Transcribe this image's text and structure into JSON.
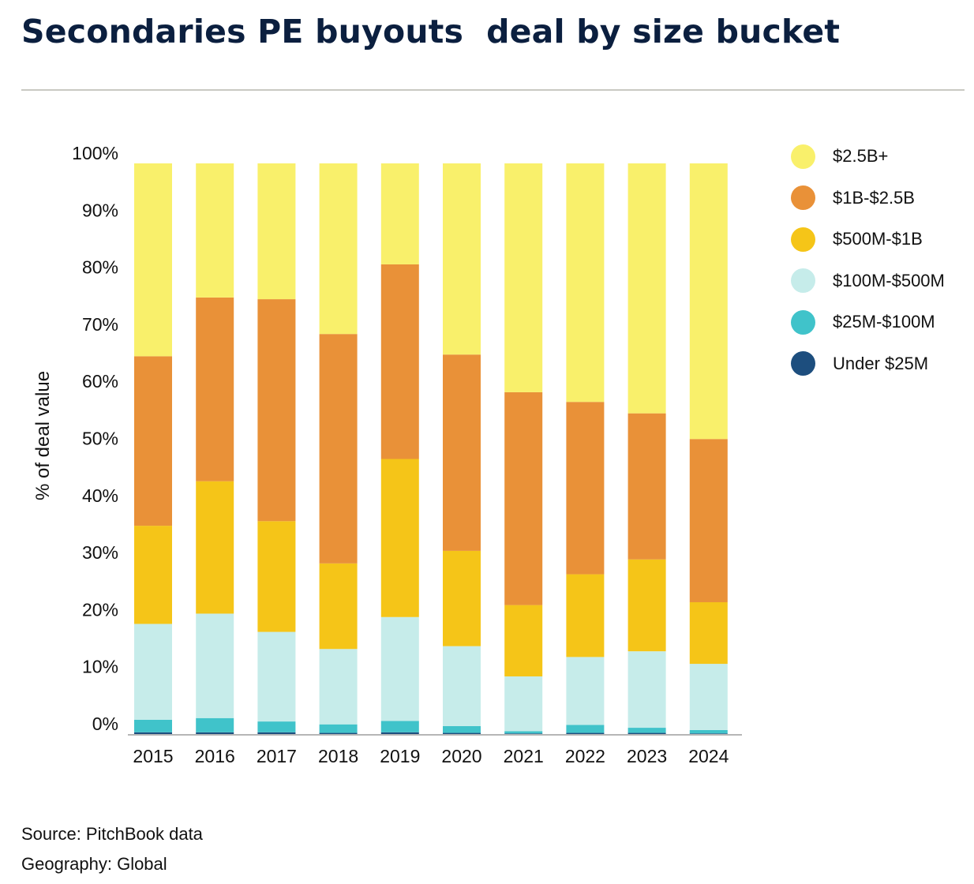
{
  "title": "Secondaries PE buyouts  deal by size bucket",
  "legend": [
    {
      "label": "$2.5B+",
      "color": "#f9f06b"
    },
    {
      "label": "$1B-$2.5B",
      "color": "#e99138"
    },
    {
      "label": "$500M-$1B",
      "color": "#f5c518"
    },
    {
      "label": "$100M-$500M",
      "color": "#c6ecea"
    },
    {
      "label": "$25M-$100M",
      "color": "#40c3ca"
    },
    {
      "label": "Under $25M",
      "color": "#1d4e7e"
    }
  ],
  "footer": {
    "source": "Source: PitchBook data",
    "geography": "Geography: Global"
  },
  "chart_data": {
    "type": "bar",
    "stacked": true,
    "categories": [
      "2015",
      "2016",
      "2017",
      "2018",
      "2019",
      "2020",
      "2021",
      "2022",
      "2023",
      "2024"
    ],
    "ylabel": "% of deal value",
    "ylim": [
      0,
      100
    ],
    "yticks": [
      0,
      10,
      20,
      30,
      40,
      50,
      60,
      70,
      80,
      90,
      100
    ],
    "ytick_labels": [
      "0%",
      "10%",
      "20%",
      "30%",
      "40%",
      "50%",
      "60%",
      "70%",
      "80%",
      "90%",
      "100%"
    ],
    "grid": false,
    "legend_position": "right",
    "series": [
      {
        "name": "Under $25M",
        "color": "#1d4e7e",
        "values": [
          0.3,
          0.3,
          0.3,
          0.2,
          0.3,
          0.2,
          0.1,
          0.2,
          0.2,
          0.1
        ]
      },
      {
        "name": "$25M-$100M",
        "color": "#40c3ca",
        "values": [
          2.2,
          2.5,
          1.9,
          1.5,
          2.0,
          1.2,
          0.4,
          1.4,
          0.9,
          0.6
        ]
      },
      {
        "name": "$100M-$500M",
        "color": "#c6ecea",
        "values": [
          16.8,
          18.3,
          15.7,
          13.2,
          18.2,
          14.0,
          9.6,
          11.9,
          13.4,
          11.6
        ]
      },
      {
        "name": "$500M-$1B",
        "color": "#f5c518",
        "values": [
          17.2,
          23.2,
          19.4,
          15.0,
          27.7,
          16.7,
          12.5,
          14.5,
          16.1,
          10.8
        ]
      },
      {
        "name": "$1B-$2.5B",
        "color": "#e99138",
        "values": [
          29.7,
          32.2,
          38.9,
          40.2,
          34.1,
          34.4,
          37.3,
          30.2,
          25.6,
          28.6
        ]
      },
      {
        "name": "$2.5B+",
        "color": "#f9f06b",
        "values": [
          33.8,
          23.5,
          23.8,
          29.9,
          17.7,
          33.5,
          40.1,
          41.8,
          43.8,
          48.3
        ]
      }
    ]
  }
}
